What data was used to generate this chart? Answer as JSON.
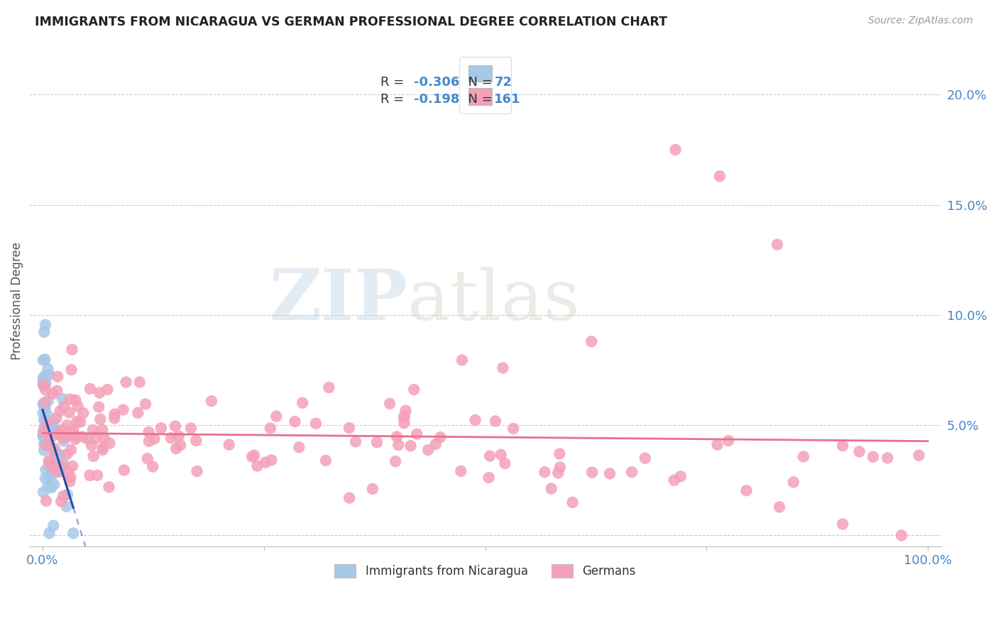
{
  "title": "IMMIGRANTS FROM NICARAGUA VS GERMAN PROFESSIONAL DEGREE CORRELATION CHART",
  "source": "Source: ZipAtlas.com",
  "ylabel": "Professional Degree",
  "ytick_vals": [
    0.0,
    0.05,
    0.1,
    0.15,
    0.2
  ],
  "ytick_labels": [
    "",
    "5.0%",
    "10.0%",
    "15.0%",
    "20.0%"
  ],
  "xlim": [
    -0.015,
    1.015
  ],
  "ylim": [
    -0.005,
    0.218
  ],
  "blue_R": -0.306,
  "blue_N": 72,
  "pink_R": -0.198,
  "pink_N": 161,
  "blue_color": "#a8c8e8",
  "pink_color": "#f4a0b8",
  "blue_line_color": "#1a4faa",
  "pink_line_color": "#e87090",
  "legend_label_blue": "Immigrants from Nicaragua",
  "legend_label_pink": "Germans",
  "grid_color": "#cccccc",
  "bg_color": "#ffffff",
  "watermark_zip": "ZIP",
  "watermark_atlas": "atlas",
  "blue_seed": 42,
  "pink_seed": 7
}
